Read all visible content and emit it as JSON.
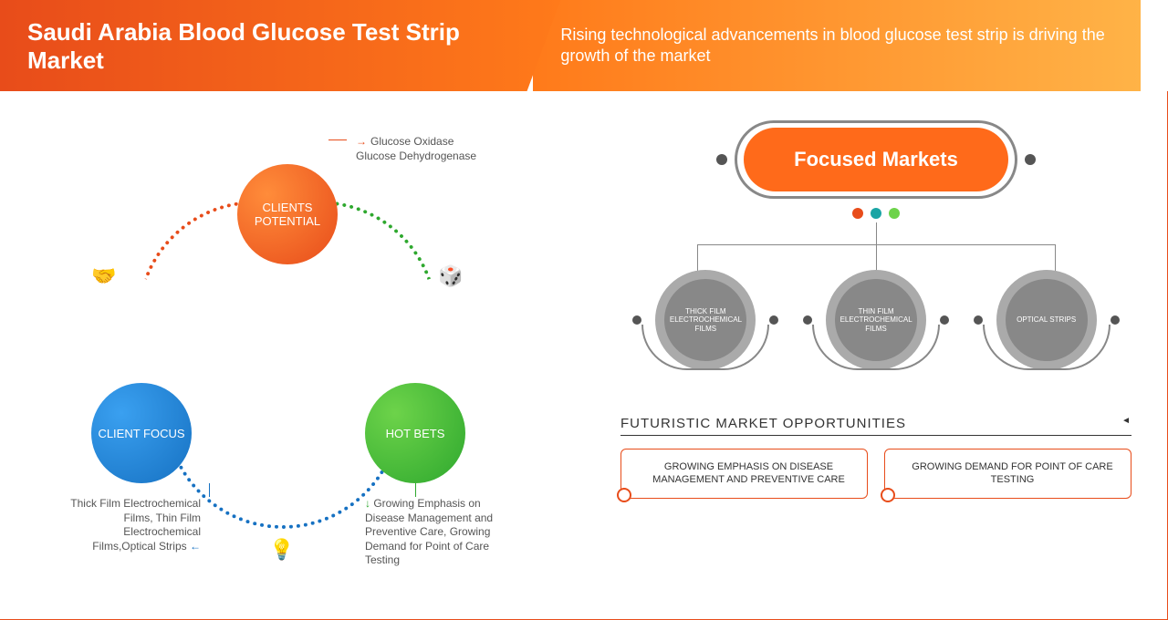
{
  "header": {
    "title": "Saudi Arabia Blood Glucose Test Strip Market",
    "subtitle": "Rising technological advancements in blood glucose test strip is driving the growth of the market"
  },
  "colors": {
    "orange": "#e84c1a",
    "orange_light": "#ff7a1a",
    "blue": "#1671c2",
    "green": "#2ea82e",
    "teal": "#1aa5a5",
    "grey": "#888888",
    "grey_dark": "#555555"
  },
  "cycle": {
    "top": {
      "label": "CLIENTS POTENTIAL",
      "annotation": "Glucose Oxidase\nGlucose Dehydrogenase"
    },
    "left": {
      "label": "CLIENT FOCUS",
      "annotation": "Thick Film Electrochemical Films, Thin Film Electrochemical Films,Optical Strips"
    },
    "right": {
      "label": "HOT BETS",
      "annotation": "Growing Emphasis on Disease Management and Preventive Care, Growing Demand for Point of Care Testing"
    },
    "icons": {
      "handshake": "handshake-icon",
      "dice": "dice-icon",
      "bulb": "bulb-icon"
    }
  },
  "focused": {
    "title": "Focused Markets",
    "items": [
      "THICK FILM ELECTROCHEMICAL FILMS",
      "THIN FILM ELECTROCHEMICAL FILMS",
      "OPTICAL STRIPS"
    ]
  },
  "fmo": {
    "title": "FUTURISTIC MARKET OPPORTUNITIES",
    "boxes": [
      "GROWING EMPHASIS ON DISEASE MANAGEMENT AND PREVENTIVE CARE",
      "GROWING DEMAND FOR POINT OF CARE TESTING"
    ]
  }
}
